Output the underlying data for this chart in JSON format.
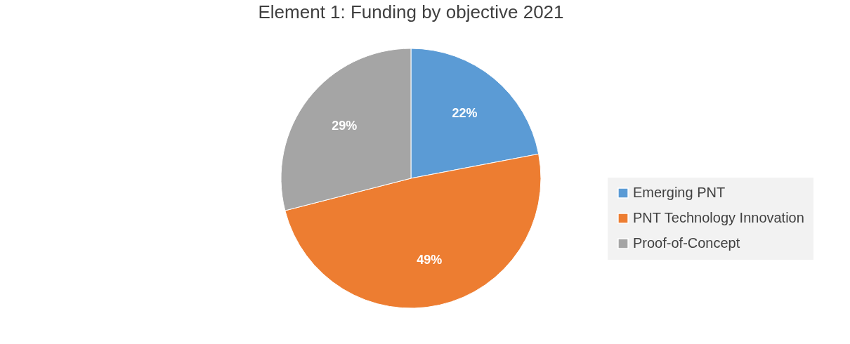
{
  "chart_data": {
    "type": "pie",
    "title": "Element 1: Funding by objective 2021",
    "categories": [
      "Emerging PNT",
      "PNT Technology Innovation",
      "Proof-of-Concept"
    ],
    "values": [
      22,
      49,
      29
    ],
    "colors": [
      "#5b9bd5",
      "#ed7d31",
      "#a5a5a5"
    ],
    "value_labels": [
      "22%",
      "49%",
      "29%"
    ],
    "legend": "right"
  }
}
